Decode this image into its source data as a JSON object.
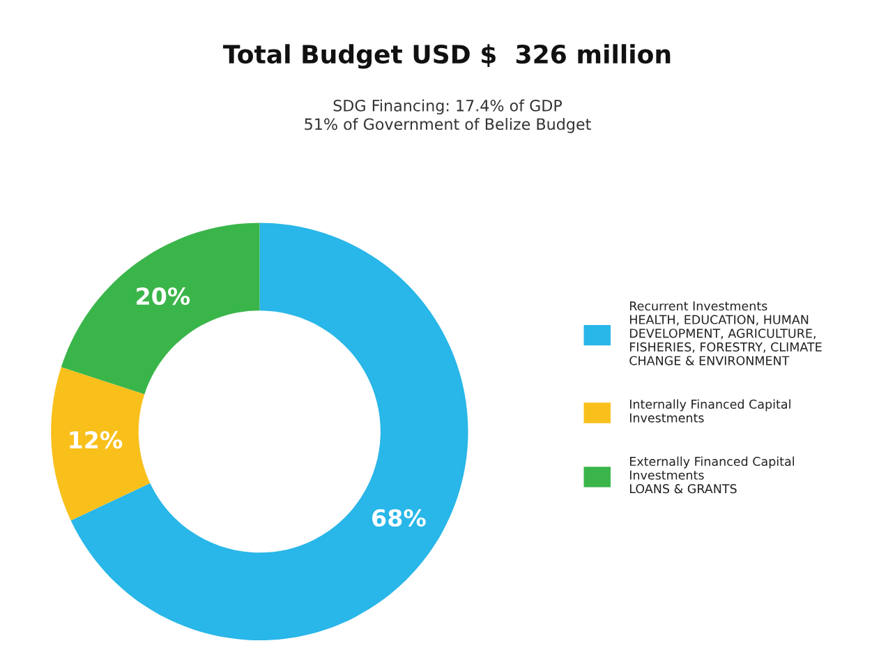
{
  "chart_data": {
    "type": "donut",
    "title": "Total Budget USD $  326 million",
    "subtitle": "SDG Financing: 17.4% of GDP\n51% of Government of Belize Budget",
    "categories": [
      "Recurrent Investments\nHEALTH, EDUCATION, HUMAN\nDEVELOPMENT, AGRICULTURE,\nFISHERIES, FORESTRY, CLIMATE\nCHANGE & ENVIRONMENT",
      "Internally Financed Capital\nInvestments",
      "Externally Financed Capital\nInvestments\nLOANS & GRANTS"
    ],
    "values": [
      68,
      12,
      20
    ],
    "value_labels": [
      "68%",
      "12%",
      "20%"
    ],
    "colors": [
      "#29b6e8",
      "#f9c01c",
      "#3ab54a"
    ],
    "legend": "right"
  }
}
